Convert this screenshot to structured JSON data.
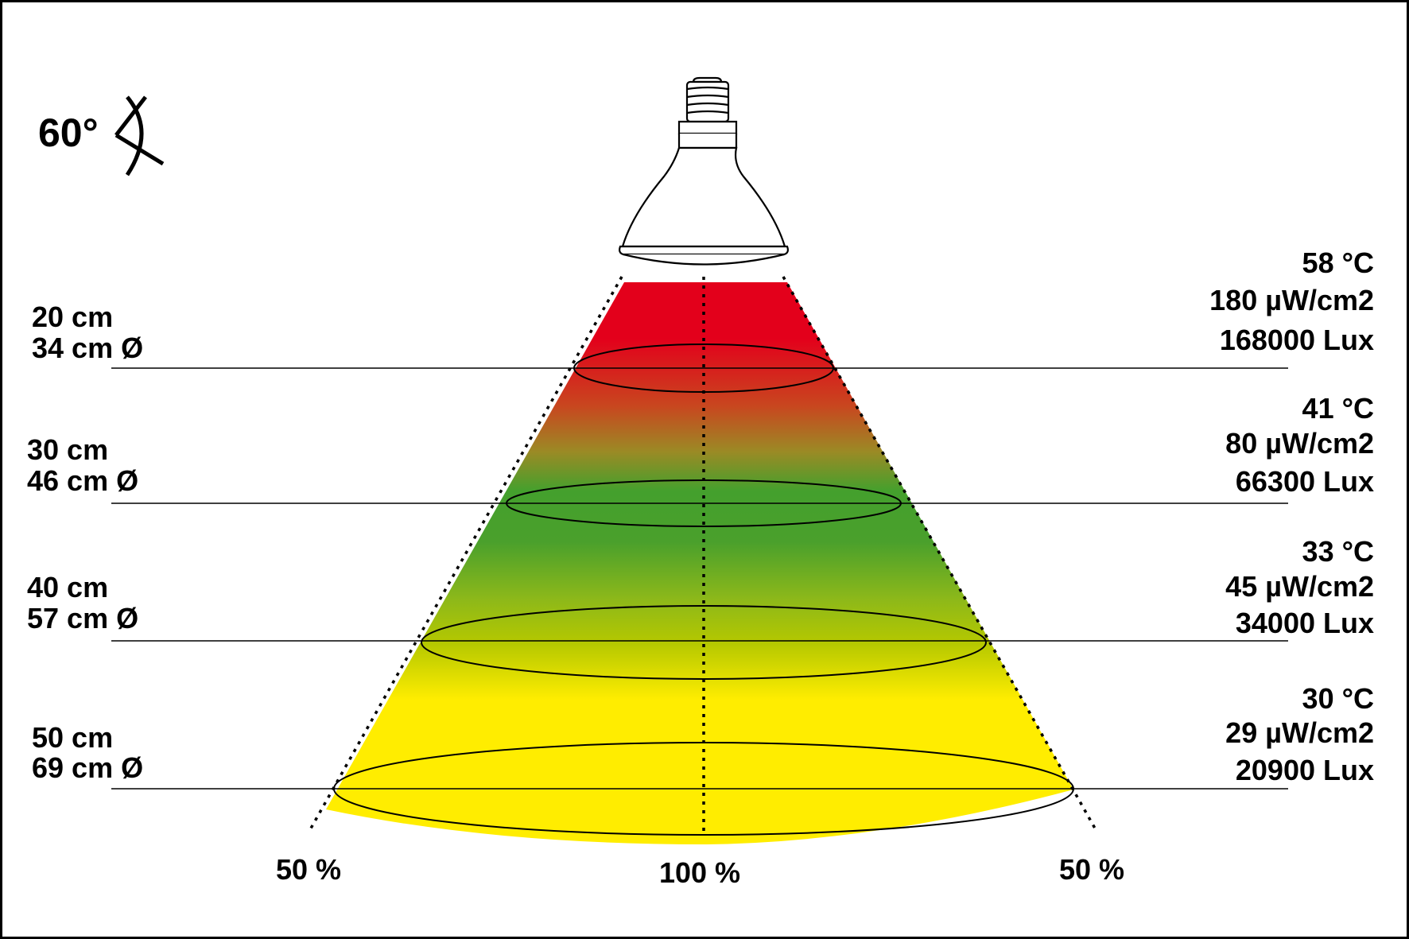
{
  "angle": {
    "value": "60°",
    "icon": "beam-angle-icon"
  },
  "colors": {
    "hot": "#e3001b",
    "warm": "#c8471f",
    "mid": "#44a02d",
    "cool": "#aac400",
    "cold": "#ffed00",
    "frame": "#000000"
  },
  "levels": [
    {
      "distance": "20 cm",
      "diameter": "34 cm Ø",
      "temperature": "58 °C",
      "uv": "180 µW/cm2",
      "lux": "168000 Lux"
    },
    {
      "distance": "30 cm",
      "diameter": "46 cm Ø",
      "temperature": "41 °C",
      "uv": "80 µW/cm2",
      "lux": "66300 Lux"
    },
    {
      "distance": "40 cm",
      "diameter": "57 cm Ø",
      "temperature": "33 °C",
      "uv": "45 µW/cm2",
      "lux": "34000 Lux"
    },
    {
      "distance": "50 cm",
      "diameter": "69 cm Ø",
      "temperature": "30 °C",
      "uv": "29 µW/cm2",
      "lux": "20900 Lux"
    }
  ],
  "bottom": {
    "left": "50 %",
    "center": "100 %",
    "right": "50 %"
  }
}
